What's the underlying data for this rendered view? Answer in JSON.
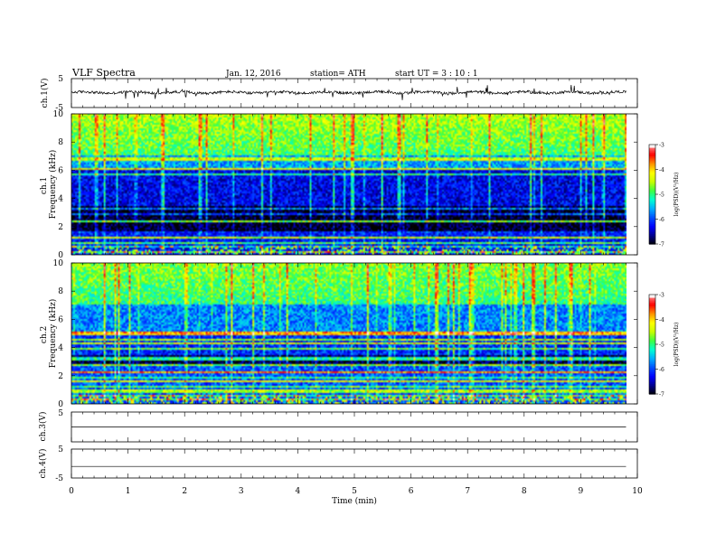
{
  "header": {
    "title": "VLF  Spectra",
    "date": "Jan. 12, 2016",
    "station": "station= ATH",
    "start": "start  UT  =   3  : 10 : 1"
  },
  "chart_data": [
    {
      "type": "line",
      "panel": "ch1-waveform",
      "ylabel": "ch.1(V)",
      "ylim": [
        -5,
        5
      ],
      "yticks": [
        "5",
        "-5"
      ],
      "xlim": [
        0,
        10
      ],
      "data_end_min": 9.8,
      "baseline": 0.2,
      "noise": "high"
    },
    {
      "type": "heatmap",
      "panel": "ch1-spectrogram",
      "ylabel": "ch.1\nFrequency  (kHz)",
      "ylim": [
        0,
        10
      ],
      "yticks": [
        "0",
        "2",
        "4",
        "6",
        "8",
        "10"
      ],
      "xlim": [
        0,
        10
      ],
      "data_end_min": 9.8,
      "colorbar": {
        "label": "log(PSD)(V²/Hz)",
        "range": [
          -7,
          -3
        ],
        "ticks": [
          "-3",
          "-4",
          "-5",
          "-6",
          "-7"
        ]
      }
    },
    {
      "type": "heatmap",
      "panel": "ch2-spectrogram",
      "ylabel": "ch.2\nFrequency  (kHz)",
      "ylim": [
        0,
        10
      ],
      "yticks": [
        "0",
        "2",
        "4",
        "6",
        "8",
        "10"
      ],
      "xlim": [
        0,
        10
      ],
      "data_end_min": 9.8,
      "colorbar": {
        "label": "log(PSD)(V²/Hz)",
        "range": [
          -7,
          -3
        ],
        "ticks": [
          "-3",
          "-4",
          "-5",
          "-6",
          "-7"
        ]
      }
    },
    {
      "type": "line",
      "panel": "ch3-waveform",
      "ylabel": "ch.3(V)",
      "ylim": [
        -5,
        5
      ],
      "yticks": [
        "5"
      ],
      "xlim": [
        0,
        10
      ],
      "data_end_min": 9.8,
      "baseline": 0
    },
    {
      "type": "line",
      "panel": "ch4-waveform",
      "ylabel": "ch.4(V)",
      "ylim": [
        -5,
        5
      ],
      "yticks": [
        "5",
        "-5"
      ],
      "xlim": [
        0,
        10
      ],
      "data_end_min": 9.8,
      "baseline": -1
    }
  ],
  "xaxis": {
    "label": "Time  (min)",
    "ticks": [
      "0",
      "1",
      "2",
      "3",
      "4",
      "5",
      "6",
      "7",
      "8",
      "9",
      "10"
    ]
  },
  "colormap": [
    "#000000",
    "#00008b",
    "#0000ff",
    "#0050ff",
    "#00b0ff",
    "#00ffd0",
    "#40ff40",
    "#c8ff00",
    "#ffff00",
    "#ff9000",
    "#ff0000",
    "#ff9090",
    "#ffffff"
  ]
}
